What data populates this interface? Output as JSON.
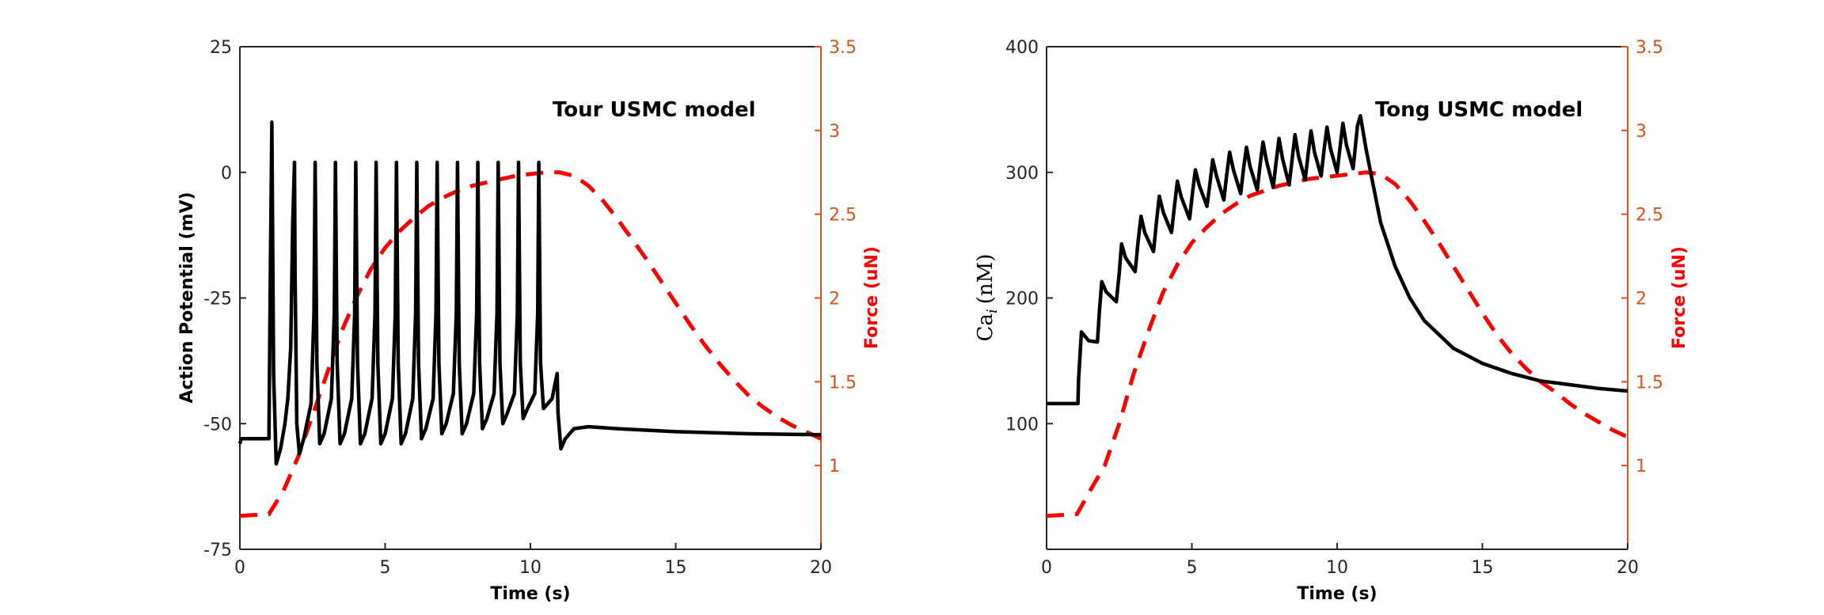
{
  "chart_data": [
    {
      "type": "line",
      "annotation": "Tour USMC model",
      "xlabel": "Time (s)",
      "ylabel": "Action Potential (mV)",
      "ylabel_right": "Force (uN)",
      "xlim": [
        0,
        20
      ],
      "ylim": [
        -75,
        25
      ],
      "ylim_right": [
        0.5,
        3.5
      ],
      "xticks": [
        "0",
        "5",
        "10",
        "15",
        "20"
      ],
      "yticks": [
        "25",
        "0",
        "-25",
        "-50",
        "-75"
      ],
      "yticks_right": [
        "3.5",
        "3",
        "2.5",
        "2",
        "1.5",
        "1"
      ],
      "grid": false,
      "colors": {
        "left_series": "#000000",
        "right_series": "#ff0000",
        "right_axis": "#d95319"
      },
      "series": [
        {
          "axis": "left",
          "style": "solid",
          "x": [
            0,
            0.05,
            0.5,
            1.0,
            1.05,
            1.1,
            1.16,
            1.25,
            1.4,
            1.55,
            1.65,
            1.75,
            1.82,
            1.88,
            1.9,
            1.96,
            2.05,
            2.2,
            2.45,
            2.55,
            2.59,
            2.65,
            2.75,
            2.9,
            3.15,
            3.25,
            3.29,
            3.35,
            3.45,
            3.6,
            3.85,
            3.95,
            3.99,
            4.05,
            4.15,
            4.3,
            4.55,
            4.65,
            4.69,
            4.75,
            4.85,
            5.0,
            5.25,
            5.35,
            5.39,
            5.45,
            5.55,
            5.7,
            5.95,
            6.05,
            6.09,
            6.15,
            6.25,
            6.4,
            6.65,
            6.75,
            6.79,
            6.85,
            6.95,
            7.1,
            7.35,
            7.45,
            7.49,
            7.55,
            7.65,
            7.8,
            8.05,
            8.15,
            8.19,
            8.25,
            8.35,
            8.5,
            8.75,
            8.85,
            8.89,
            8.95,
            9.05,
            9.2,
            9.45,
            9.55,
            9.59,
            9.65,
            9.75,
            9.9,
            10.15,
            10.25,
            10.29,
            10.35,
            10.45,
            10.6,
            10.75,
            10.85,
            10.92,
            10.95,
            11.05,
            11.2,
            11.5,
            12.0,
            13.0,
            15.0,
            17.5,
            20.0
          ],
          "y": [
            -54,
            -53,
            -53,
            -53,
            -20,
            10,
            -40,
            -58,
            -55,
            -50,
            -45,
            -35,
            -10,
            2,
            -20,
            -50,
            -56,
            -53,
            -46,
            -28,
            2,
            -38,
            -54,
            -52,
            -45,
            -28,
            2,
            -38,
            -54,
            -52,
            -45,
            -28,
            2,
            -38,
            -54,
            -52,
            -45,
            -28,
            2,
            -38,
            -54,
            -52,
            -45,
            -28,
            2,
            -38,
            -54,
            -52,
            -45,
            -28,
            2,
            -38,
            -53,
            -51,
            -45,
            -28,
            2,
            -38,
            -52,
            -50,
            -44,
            -28,
            2,
            -38,
            -52,
            -50,
            -44,
            -28,
            2,
            -38,
            -51,
            -49,
            -44,
            -28,
            2,
            -38,
            -50,
            -48,
            -44,
            -28,
            2,
            -38,
            -49,
            -47,
            -44,
            -28,
            2,
            -38,
            -47,
            -46,
            -45,
            -42,
            -40,
            -48,
            -55,
            -53,
            -51,
            -50.6,
            -51,
            -51.6,
            -52,
            -52.2
          ]
        },
        {
          "axis": "right",
          "style": "dashed",
          "x": [
            0,
            1.0,
            1.5,
            2.0,
            2.5,
            3.0,
            3.5,
            4.0,
            4.5,
            5.0,
            5.5,
            6.0,
            6.5,
            7.0,
            7.5,
            8.0,
            8.5,
            9.0,
            9.5,
            10.0,
            10.5,
            11.0,
            11.5,
            12.0,
            12.5,
            13.0,
            13.5,
            14.0,
            14.5,
            15.0,
            15.5,
            16.0,
            16.5,
            17.0,
            17.5,
            18.0,
            18.5,
            19.0,
            19.5,
            20.0
          ],
          "y": [
            0.7,
            0.71,
            0.85,
            1.05,
            1.3,
            1.55,
            1.8,
            2.0,
            2.17,
            2.3,
            2.4,
            2.48,
            2.55,
            2.6,
            2.64,
            2.67,
            2.69,
            2.71,
            2.73,
            2.74,
            2.75,
            2.75,
            2.73,
            2.67,
            2.58,
            2.47,
            2.35,
            2.23,
            2.1,
            1.97,
            1.84,
            1.72,
            1.61,
            1.51,
            1.42,
            1.35,
            1.29,
            1.24,
            1.2,
            1.16
          ]
        }
      ]
    },
    {
      "type": "line",
      "annotation": "Tong USMC model",
      "xlabel": "Time (s)",
      "ylabel": "Ca",
      "ylabel_sub": "i",
      "ylabel_unit": "(nM)",
      "ylabel_right": "Force (uN)",
      "xlim": [
        0,
        20
      ],
      "ylim": [
        0,
        400
      ],
      "ylim_right": [
        0.5,
        3.5
      ],
      "xticks": [
        "0",
        "5",
        "10",
        "15",
        "20"
      ],
      "yticks": [
        "400",
        "300",
        "200",
        "100"
      ],
      "yticks_right": [
        "3.5",
        "3",
        "2.5",
        "2",
        "1.5",
        "1"
      ],
      "grid": false,
      "colors": {
        "left_series": "#000000",
        "right_series": "#ff0000",
        "right_axis": "#d95319"
      },
      "series": [
        {
          "axis": "left",
          "style": "solid",
          "x": [
            0,
            1.08,
            1.1,
            1.2,
            1.45,
            1.75,
            1.82,
            1.9,
            2.05,
            2.4,
            2.5,
            2.58,
            2.72,
            3.05,
            3.15,
            3.25,
            3.38,
            3.68,
            3.78,
            3.88,
            4.02,
            4.3,
            4.4,
            4.5,
            4.64,
            4.92,
            5.02,
            5.12,
            5.25,
            5.52,
            5.62,
            5.72,
            5.85,
            6.1,
            6.2,
            6.3,
            6.43,
            6.68,
            6.78,
            6.88,
            7.0,
            7.25,
            7.35,
            7.45,
            7.57,
            7.8,
            7.9,
            8.0,
            8.12,
            8.35,
            8.45,
            8.55,
            8.67,
            8.9,
            9.0,
            9.1,
            9.22,
            9.45,
            9.55,
            9.65,
            9.77,
            10.0,
            10.1,
            10.2,
            10.32,
            10.55,
            10.7,
            10.8,
            11.0,
            11.5,
            12.0,
            12.5,
            13.0,
            14.0,
            15.0,
            16.0,
            17.0,
            18.0,
            19.0,
            20.0
          ],
          "y": [
            116,
            116,
            135,
            173,
            166,
            165,
            190,
            213,
            205,
            197,
            220,
            243,
            232,
            221,
            245,
            265,
            252,
            237,
            260,
            281,
            268,
            252,
            273,
            293,
            280,
            263,
            283,
            302,
            290,
            273,
            291,
            310,
            297,
            278,
            298,
            316,
            302,
            283,
            303,
            320,
            305,
            286,
            306,
            324,
            309,
            288,
            308,
            327,
            311,
            290,
            310,
            330,
            313,
            294,
            314,
            333,
            316,
            297,
            318,
            336,
            319,
            300,
            320,
            339,
            322,
            303,
            337,
            345,
            318,
            260,
            225,
            200,
            182,
            160,
            148,
            140,
            134,
            131,
            128,
            126
          ]
        },
        {
          "axis": "right",
          "style": "dashed",
          "x": [
            0,
            1.05,
            1.5,
            2.0,
            2.5,
            3.0,
            3.5,
            4.0,
            4.5,
            5.0,
            5.5,
            6.0,
            6.5,
            7.0,
            7.5,
            8.0,
            8.5,
            9.0,
            9.5,
            10.0,
            10.5,
            11.0,
            11.5,
            12.0,
            12.5,
            13.0,
            13.5,
            14.0,
            14.5,
            15.0,
            15.5,
            16.0,
            16.5,
            17.0,
            17.5,
            18.0,
            18.5,
            19.0,
            19.5,
            20.0
          ],
          "y": [
            0.7,
            0.71,
            0.85,
            1.0,
            1.25,
            1.55,
            1.8,
            2.03,
            2.2,
            2.33,
            2.42,
            2.5,
            2.56,
            2.61,
            2.64,
            2.67,
            2.69,
            2.71,
            2.72,
            2.73,
            2.74,
            2.75,
            2.74,
            2.68,
            2.58,
            2.46,
            2.33,
            2.19,
            2.05,
            1.91,
            1.78,
            1.67,
            1.58,
            1.5,
            1.44,
            1.37,
            1.31,
            1.26,
            1.21,
            1.17
          ]
        }
      ]
    }
  ]
}
